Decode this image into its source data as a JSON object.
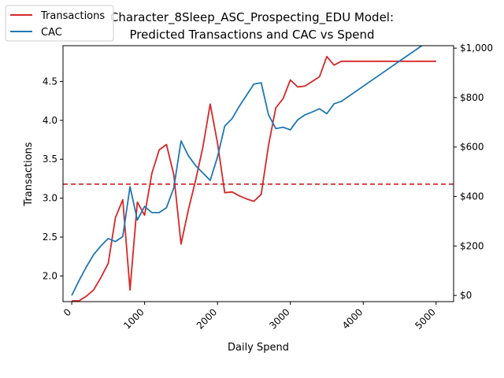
{
  "chart_data": {
    "type": "line",
    "title_lines": [
      "Character_8Sleep_ASC_Prospecting_EDU Model:",
      "Predicted Transactions and CAC vs Spend"
    ],
    "xlabel": "Daily Spend",
    "ylabel_left": "Transactions",
    "ylabel_right": "",
    "xlim": [
      -120,
      5240
    ],
    "ylim_left": [
      1.67,
      4.96
    ],
    "ylim_right": [
      -25,
      1010
    ],
    "x_ticks": [
      0,
      1000,
      2000,
      3000,
      4000,
      5000
    ],
    "x_tick_labels": [
      "0",
      "1000",
      "2000",
      "3000",
      "4000",
      "5000"
    ],
    "y_left_ticks": [
      2.0,
      2.5,
      3.0,
      3.5,
      4.0,
      4.5
    ],
    "y_left_tick_labels": [
      "2.0",
      "2.5",
      "3.0",
      "3.5",
      "4.0",
      "4.5"
    ],
    "y_right_ticks": [
      0,
      200,
      400,
      600,
      800,
      1000
    ],
    "y_right_tick_labels": [
      "$0",
      "$200",
      "$400",
      "$600",
      "$800",
      "$1,000"
    ],
    "reference_line": {
      "axis": "left",
      "y": 3.18,
      "color": "#cc1f1f",
      "style": "dashed"
    },
    "legend": {
      "placement": "top-left",
      "entries": [
        "Transactions",
        "CAC"
      ]
    },
    "grid": false,
    "series": [
      {
        "name": "Transactions",
        "axis": "left",
        "color": "#d62728",
        "x": [
          0,
          100,
          200,
          300,
          400,
          500,
          600,
          700,
          800,
          900,
          1000,
          1100,
          1200,
          1300,
          1400,
          1500,
          1600,
          1700,
          1800,
          1900,
          2000,
          2100,
          2200,
          2300,
          2400,
          2500,
          2600,
          2700,
          2800,
          2900,
          3000,
          3100,
          3200,
          3300,
          3400,
          3500,
          3600,
          3700,
          3800,
          3900,
          4000,
          4500,
          5000
        ],
        "y": [
          1.68,
          1.68,
          1.74,
          1.82,
          1.98,
          2.16,
          2.75,
          2.98,
          1.82,
          2.95,
          2.78,
          3.32,
          3.62,
          3.69,
          3.3,
          2.41,
          2.85,
          3.23,
          3.66,
          4.21,
          3.71,
          3.07,
          3.08,
          3.03,
          2.99,
          2.96,
          3.05,
          3.68,
          4.16,
          4.28,
          4.52,
          4.43,
          4.44,
          4.5,
          4.56,
          4.82,
          4.71,
          4.76,
          4.76,
          4.76,
          4.76,
          4.76,
          4.76
        ]
      },
      {
        "name": "CAC",
        "axis": "right",
        "color": "#1f77b4",
        "x": [
          0,
          100,
          200,
          300,
          400,
          500,
          600,
          700,
          800,
          900,
          1000,
          1100,
          1200,
          1300,
          1400,
          1500,
          1600,
          1700,
          1800,
          1900,
          2000,
          2100,
          2200,
          2300,
          2400,
          2500,
          2600,
          2700,
          2800,
          2900,
          3000,
          3100,
          3200,
          3300,
          3400,
          3500,
          3600,
          3700,
          5000
        ],
        "y": [
          0,
          60,
          115,
          165,
          200,
          230,
          218,
          238,
          440,
          305,
          360,
          335,
          335,
          355,
          435,
          625,
          565,
          525,
          495,
          465,
          560,
          685,
          715,
          765,
          810,
          855,
          860,
          730,
          675,
          680,
          670,
          710,
          730,
          742,
          755,
          735,
          775,
          785,
          1050
        ]
      }
    ]
  }
}
